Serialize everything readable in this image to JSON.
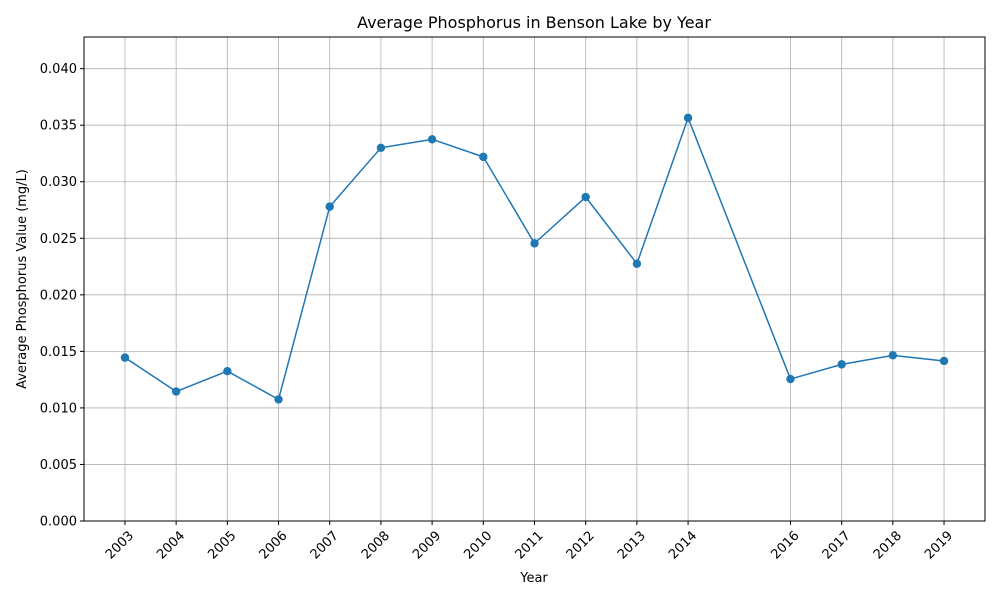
{
  "chart_data": {
    "type": "line",
    "title": "Average Phosphorus in Benson Lake by Year",
    "xlabel": "Year",
    "ylabel": "Average Phosphorus Value (mg/L)",
    "x": [
      2003,
      2004,
      2005,
      2006,
      2007,
      2008,
      2009,
      2010,
      2011,
      2012,
      2013,
      2014,
      2016,
      2017,
      2018,
      2019
    ],
    "x_tick_labels": [
      "2003",
      "2004",
      "2005",
      "2006",
      "2007",
      "2008",
      "2009",
      "2010",
      "2011",
      "2012",
      "2013",
      "2014",
      "2016",
      "2017",
      "2018",
      "2019"
    ],
    "series": [
      {
        "values": [
          0.01445,
          0.01145,
          0.01325,
          0.01075,
          0.0278,
          0.033,
          0.03375,
          0.0322,
          0.02455,
          0.02865,
          0.02275,
          0.03565,
          0.01255,
          0.01385,
          0.01465,
          0.01415
        ],
        "color": "#1f77b4"
      }
    ],
    "y_ticks": [
      0.0,
      0.005,
      0.01,
      0.015,
      0.02,
      0.025,
      0.03,
      0.035,
      0.04
    ],
    "y_tick_labels": [
      "0.000",
      "0.005",
      "0.010",
      "0.015",
      "0.020",
      "0.025",
      "0.030",
      "0.035",
      "0.040"
    ],
    "xlim": [
      2002.2,
      2019.8
    ],
    "ylim": [
      0.0,
      0.0428
    ],
    "grid": true,
    "marker": "circle"
  }
}
